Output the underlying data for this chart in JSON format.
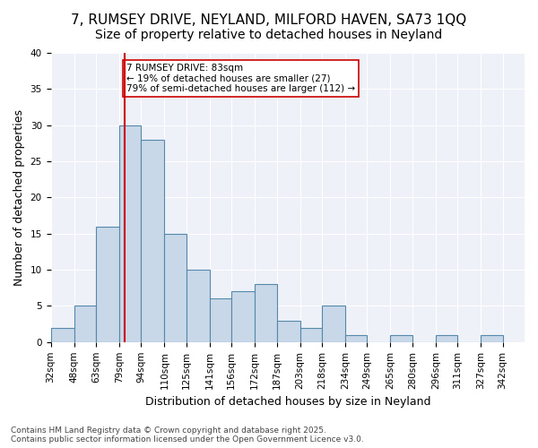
{
  "title1": "7, RUMSEY DRIVE, NEYLAND, MILFORD HAVEN, SA73 1QQ",
  "title2": "Size of property relative to detached houses in Neyland",
  "xlabel": "Distribution of detached houses by size in Neyland",
  "ylabel": "Number of detached properties",
  "bar_values": [
    2,
    5,
    16,
    30,
    28,
    15,
    10,
    6,
    7,
    8,
    3,
    2,
    5,
    1,
    0,
    1,
    0,
    1,
    0,
    1
  ],
  "bin_labels": [
    "32sqm",
    "48sqm",
    "63sqm",
    "79sqm",
    "94sqm",
    "110sqm",
    "125sqm",
    "141sqm",
    "156sqm",
    "172sqm",
    "187sqm",
    "203sqm",
    "218sqm",
    "234sqm",
    "249sqm",
    "265sqm",
    "280sqm",
    "296sqm",
    "311sqm",
    "327sqm",
    "342sqm"
  ],
  "bin_edges": [
    32,
    48,
    63,
    79,
    94,
    110,
    125,
    141,
    156,
    172,
    187,
    203,
    218,
    234,
    249,
    265,
    280,
    296,
    311,
    327,
    342
  ],
  "bar_color": "#c8d8e8",
  "bar_edge_color": "#5588aa",
  "vline_x": 83,
  "vline_color": "#cc0000",
  "annotation_text": "7 RUMSEY DRIVE: 83sqm\n← 19% of detached houses are smaller (27)\n79% of semi-detached houses are larger (112) →",
  "annotation_box_color": "#ffffff",
  "annotation_box_edge": "#cc0000",
  "ylim": [
    0,
    40
  ],
  "yticks": [
    0,
    5,
    10,
    15,
    20,
    25,
    30,
    35,
    40
  ],
  "background_color": "#eef2f8",
  "footer_text": "Contains HM Land Registry data © Crown copyright and database right 2025.\nContains public sector information licensed under the Open Government Licence v3.0.",
  "title_fontsize": 11,
  "subtitle_fontsize": 10,
  "tick_fontsize": 7.5,
  "ylabel_fontsize": 9,
  "xlabel_fontsize": 9
}
